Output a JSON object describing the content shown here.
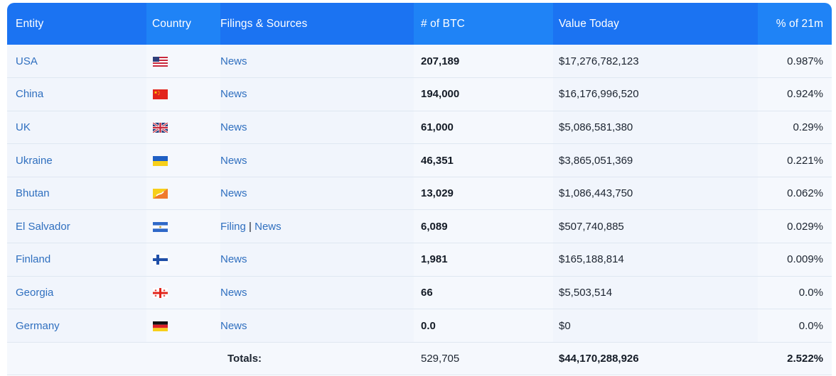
{
  "headers": [
    "Entity",
    "Country",
    "Filings & Sources",
    "# of BTC",
    "Value Today",
    "% of 21m"
  ],
  "rows": [
    {
      "entity": "USA",
      "flag_icon": "usa-flag-icon",
      "sources": [
        {
          "label": "News"
        }
      ],
      "btc": "207,189",
      "value": "$17,276,782,123",
      "pct": "0.987%"
    },
    {
      "entity": "China",
      "flag_icon": "china-flag-icon",
      "sources": [
        {
          "label": "News"
        }
      ],
      "btc": "194,000",
      "value": "$16,176,996,520",
      "pct": "0.924%"
    },
    {
      "entity": "UK",
      "flag_icon": "uk-flag-icon",
      "sources": [
        {
          "label": "News"
        }
      ],
      "btc": "61,000",
      "value": "$5,086,581,380",
      "pct": "0.29%"
    },
    {
      "entity": "Ukraine",
      "flag_icon": "ukraine-flag-icon",
      "sources": [
        {
          "label": "News"
        }
      ],
      "btc": "46,351",
      "value": "$3,865,051,369",
      "pct": "0.221%"
    },
    {
      "entity": "Bhutan",
      "flag_icon": "bhutan-flag-icon",
      "sources": [
        {
          "label": "News"
        }
      ],
      "btc": "13,029",
      "value": "$1,086,443,750",
      "pct": "0.062%"
    },
    {
      "entity": "El Salvador",
      "flag_icon": "el-salvador-flag-icon",
      "sources": [
        {
          "label": "Filing"
        },
        {
          "label": "News"
        }
      ],
      "btc": "6,089",
      "value": "$507,740,885",
      "pct": "0.029%"
    },
    {
      "entity": "Finland",
      "flag_icon": "finland-flag-icon",
      "sources": [
        {
          "label": "News"
        }
      ],
      "btc": "1,981",
      "value": "$165,188,814",
      "pct": "0.009%"
    },
    {
      "entity": "Georgia",
      "flag_icon": "georgia-flag-icon",
      "sources": [
        {
          "label": "News"
        }
      ],
      "btc": "66",
      "value": "$5,503,514",
      "pct": "0.0%"
    },
    {
      "entity": "Germany",
      "flag_icon": "germany-flag-icon",
      "sources": [
        {
          "label": "News"
        }
      ],
      "btc": "0.0",
      "value": "$0",
      "pct": "0.0%"
    }
  ],
  "totals": {
    "label": "Totals:",
    "btc": "529,705",
    "value": "$44,170,288,926",
    "pct": "2.522%"
  },
  "source_separator": "|",
  "colors": {
    "header_blue": "#1b73f2",
    "link_blue": "#2f6fbf",
    "row_bg": "#f1f5fc"
  }
}
